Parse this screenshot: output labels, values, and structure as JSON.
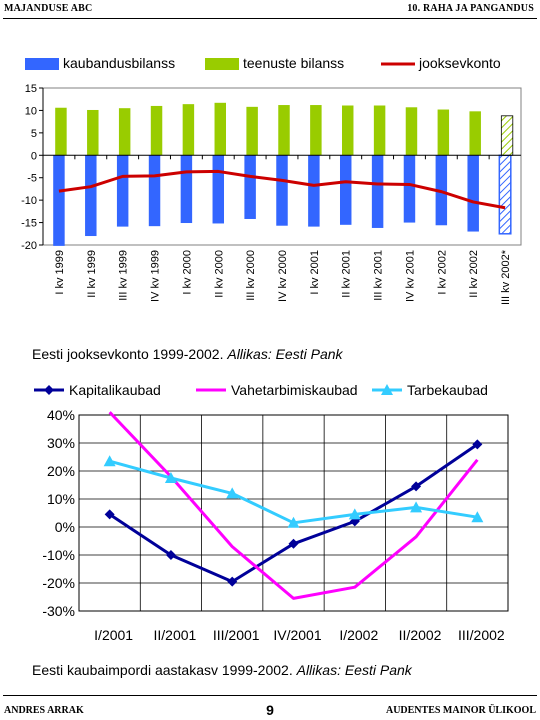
{
  "header": {
    "left": "MAJANDUSE ABC",
    "right": "10. RAHA JA PANGANDUS"
  },
  "figure1": {
    "caption": "Eesti jooksevkonto 1999-2002.",
    "source": "Allikas: Eesti Pank",
    "colors": {
      "trade": "#3366ff",
      "services": "#99cc00",
      "current": "#cc0000",
      "grid": "#000000",
      "plot_bg": "#ffffff",
      "hatch": "#3366ff",
      "hatch_services": "#99cc00"
    }
  },
  "figure2": {
    "caption": "Eesti kaubaimpordi aastakasv 1999-2002.",
    "source": "Allikas: Eesti Pank",
    "colors": {
      "capital": "#000099",
      "intermediate": "#ff00ff",
      "consumer": "#33ccff",
      "plot_bg": "#ffffff",
      "grid": "#000000"
    }
  },
  "chart_data": [
    {
      "type": "bar",
      "categories": [
        "I kv 1999",
        "II kv 1999",
        "III kv 1999",
        "IV kv 1999",
        "I kv 2000",
        "II kv 2000",
        "III kv 2000",
        "IV kv 2000",
        "I kv 2001",
        "II kv 2001",
        "III kv 2001",
        "IV kv 2001",
        "I kv 2002",
        "II kv 2002",
        "III kv 2002*"
      ],
      "series": [
        {
          "name": "kaubandusbilanss",
          "kind": "bar",
          "values": [
            -20.2,
            -18,
            -15.9,
            -15.8,
            -15.1,
            -15.2,
            -14.2,
            -15.7,
            -15.9,
            -15.5,
            -16.2,
            -15,
            -15.6,
            -17,
            -17.5
          ]
        },
        {
          "name": "teenuste bilanss",
          "kind": "bar",
          "values": [
            10.6,
            10.1,
            10.5,
            11,
            11.4,
            11.7,
            10.8,
            11.2,
            11.2,
            11.1,
            11.1,
            10.7,
            10.2,
            9.8,
            8.8
          ]
        },
        {
          "name": "jooksevkonto",
          "kind": "line",
          "values": [
            -8,
            -7,
            -4.7,
            -4.6,
            -3.7,
            -3.6,
            -4.7,
            -5.6,
            -6.7,
            -5.9,
            -6.4,
            -6.5,
            -8.1,
            -10.4,
            -11.7
          ]
        }
      ],
      "projected_last": true,
      "ylim": [
        -20,
        15
      ],
      "yticks": [
        15,
        10,
        5,
        0,
        -5,
        -10,
        -15,
        -20
      ],
      "ytick_labels": [
        "15",
        "10",
        "5",
        "0",
        "-5",
        "-10",
        "-15",
        "-20"
      ],
      "legend_position": "top",
      "grid": false
    },
    {
      "type": "line",
      "categories": [
        "I/2001",
        "II/2001",
        "III/2001",
        "IV/2001",
        "I/2002",
        "II/2002",
        "III/2002"
      ],
      "series": [
        {
          "name": "Kapitalikaubad",
          "marker": "diamond",
          "values": [
            4.5,
            -10,
            -19.5,
            -6,
            2,
            14.5,
            29.5
          ]
        },
        {
          "name": "Vahetarbimiskaubad",
          "marker": "none",
          "values": [
            41,
            18,
            -7,
            -25.5,
            -21.5,
            -3.5,
            24
          ]
        },
        {
          "name": "Tarbekaubad",
          "marker": "triangle",
          "values": [
            23.5,
            17.5,
            12,
            1.5,
            4.5,
            7,
            3.5
          ]
        }
      ],
      "ylim": [
        -30,
        40
      ],
      "yticks": [
        40,
        30,
        20,
        10,
        0,
        -10,
        -20,
        -30
      ],
      "ytick_labels": [
        "40%",
        "30%",
        "20%",
        "10%",
        "0%",
        "-10%",
        "-20%",
        "-30%"
      ],
      "legend_position": "top",
      "grid": true
    }
  ],
  "footer": {
    "left": "ANDRES ARRAK",
    "page": "9",
    "right": "AUDENTES MAINOR ÜLIKOOL"
  }
}
